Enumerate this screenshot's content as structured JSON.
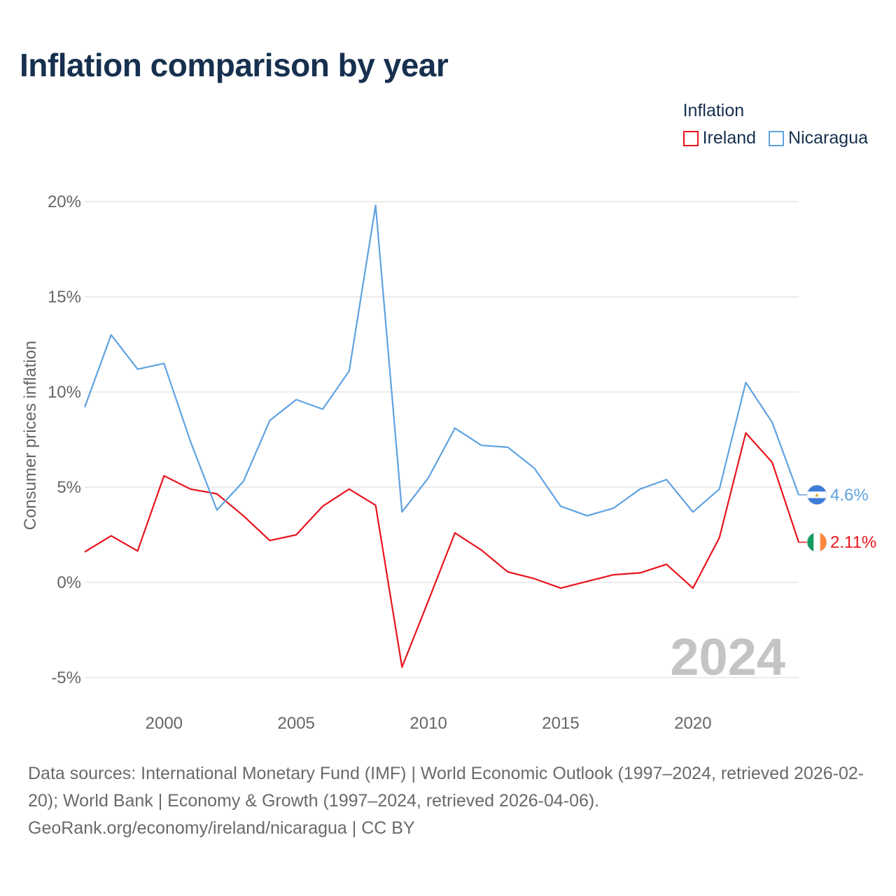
{
  "title": "Inflation comparison by year",
  "legend": {
    "title": "Inflation"
  },
  "colors": {
    "ireland": "#e8141d",
    "nicaragua": "#5fa2e0",
    "grid": "#e6e6e6",
    "text": "#666666",
    "watermark": "#c4c4c4",
    "title": "#17304f"
  },
  "chart_data": {
    "type": "line",
    "ylabel": "Consumer prices inflation",
    "xlabel": "",
    "xlim": [
      1997,
      2024
    ],
    "ylim": [
      -5,
      20
    ],
    "yticks": [
      20,
      15,
      10,
      5,
      0,
      -5
    ],
    "ytick_labels": [
      "20%",
      "15%",
      "10%",
      "5%",
      "0%",
      "-5%"
    ],
    "xticks": [
      2000,
      2005,
      2010,
      2015,
      2020
    ],
    "xtick_labels": [
      "2000",
      "2005",
      "2010",
      "2015",
      "2020"
    ],
    "x": [
      1997,
      1998,
      1999,
      2000,
      2001,
      2002,
      2003,
      2004,
      2005,
      2006,
      2007,
      2008,
      2009,
      2010,
      2011,
      2012,
      2013,
      2014,
      2015,
      2016,
      2017,
      2018,
      2019,
      2020,
      2021,
      2022,
      2023,
      2024
    ],
    "series": [
      {
        "key": "ireland",
        "name": "Ireland",
        "values": [
          1.6,
          2.45,
          1.65,
          5.6,
          4.9,
          4.65,
          3.5,
          2.2,
          2.5,
          4.0,
          4.9,
          4.05,
          -4.45,
          -0.95,
          2.6,
          1.7,
          0.55,
          0.2,
          -0.3,
          0.05,
          0.4,
          0.5,
          0.95,
          -0.3,
          2.35,
          7.85,
          6.3,
          2.11
        ],
        "end_label": "2.11%"
      },
      {
        "key": "nicaragua",
        "name": "Nicaragua",
        "values": [
          9.2,
          13.0,
          11.2,
          11.5,
          7.4,
          3.8,
          5.3,
          8.5,
          9.6,
          9.1,
          11.1,
          19.8,
          3.7,
          5.5,
          8.1,
          7.2,
          7.1,
          6.0,
          4.0,
          3.5,
          3.9,
          4.9,
          5.4,
          3.7,
          4.9,
          10.5,
          8.4,
          4.6
        ],
        "end_label": "4.6%"
      }
    ],
    "year_watermark": "2024"
  },
  "source": {
    "line1": "Data sources: International Monetary Fund (IMF) | World Economic Outlook (1997–2024, retrieved 2026-02-20); World Bank | Economy & Growth (1997–2024, retrieved 2026-04-06).",
    "line2": "GeoRank.org/economy/ireland/nicaragua | CC BY"
  }
}
